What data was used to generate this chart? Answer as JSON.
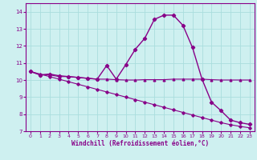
{
  "xlabel": "Windchill (Refroidissement éolien,°C)",
  "xlim": [
    -0.5,
    23.5
  ],
  "ylim": [
    7,
    14.5
  ],
  "yticks": [
    7,
    8,
    9,
    10,
    11,
    12,
    13,
    14
  ],
  "xticks": [
    0,
    1,
    2,
    3,
    4,
    5,
    6,
    7,
    8,
    9,
    10,
    11,
    12,
    13,
    14,
    15,
    16,
    17,
    18,
    19,
    20,
    21,
    22,
    23
  ],
  "bg_color": "#cef0f0",
  "grid_color": "#aadddd",
  "line_color": "#880088",
  "line1_x": [
    0,
    1,
    2,
    3,
    4,
    5,
    6,
    7,
    8,
    9,
    10,
    11,
    12,
    13,
    14,
    15,
    16,
    17,
    18,
    19,
    20,
    21,
    22,
    23
  ],
  "line1_y": [
    10.5,
    10.3,
    10.35,
    10.25,
    10.2,
    10.15,
    10.1,
    10.05,
    10.85,
    10.05,
    10.9,
    11.8,
    12.45,
    13.55,
    13.8,
    13.8,
    13.2,
    11.9,
    10.05,
    8.7,
    8.2,
    7.65,
    7.5,
    7.4
  ],
  "line2_x": [
    0,
    1,
    2,
    3,
    4,
    5,
    6,
    7,
    8,
    9,
    10,
    11,
    12,
    13,
    14,
    15,
    16,
    17,
    18,
    19,
    20,
    21,
    22,
    23
  ],
  "line2_y": [
    10.5,
    10.3,
    10.3,
    10.2,
    10.2,
    10.15,
    10.1,
    10.05,
    10.05,
    10.02,
    10.0,
    10.0,
    10.02,
    10.02,
    10.02,
    10.05,
    10.05,
    10.05,
    10.05,
    10.02,
    10.0,
    10.0,
    10.0,
    10.0
  ],
  "line3_x": [
    0,
    1,
    2,
    3,
    4,
    5,
    6,
    7,
    8,
    9,
    10,
    11,
    12,
    13,
    14,
    15,
    16,
    17,
    18,
    19,
    20,
    21,
    22,
    23
  ],
  "line3_y": [
    10.5,
    10.35,
    10.2,
    10.05,
    9.9,
    9.75,
    9.6,
    9.45,
    9.3,
    9.15,
    9.0,
    8.85,
    8.7,
    8.55,
    8.4,
    8.25,
    8.1,
    7.95,
    7.8,
    7.65,
    7.5,
    7.38,
    7.28,
    7.2
  ]
}
